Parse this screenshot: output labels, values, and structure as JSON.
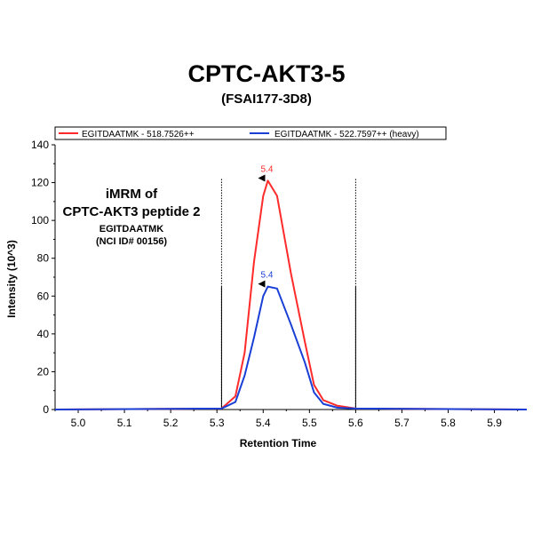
{
  "title": "CPTC-AKT3-5",
  "subtitle": "(FSAI177-3D8)",
  "annotation": {
    "line1": "iMRM of",
    "line2": "CPTC-AKT3 peptide 2",
    "line3": "EGITDAATMK",
    "line4": "(NCI ID# 00156)"
  },
  "chart_data": {
    "type": "line",
    "xlabel": "Retention Time",
    "ylabel": "Intensity (10^3)",
    "xlim": [
      4.95,
      5.97
    ],
    "ylim": [
      0,
      140
    ],
    "x_ticks": [
      "5.0",
      "5.1",
      "5.2",
      "5.3",
      "5.4",
      "5.5",
      "5.6",
      "5.7",
      "5.8",
      "5.9"
    ],
    "y_ticks": [
      "0",
      "20",
      "40",
      "60",
      "80",
      "100",
      "120",
      "140"
    ],
    "integration_bounds": [
      5.31,
      5.6
    ],
    "series": [
      {
        "name": "EGITDAATMK - 518.7526++",
        "color": "#ff2a2a",
        "x": [
          4.95,
          5.31,
          5.34,
          5.36,
          5.38,
          5.4,
          5.41,
          5.43,
          5.46,
          5.49,
          5.51,
          5.53,
          5.56,
          5.6,
          5.97
        ],
        "y": [
          0,
          0.5,
          7,
          30,
          78,
          113,
          121,
          113,
          72,
          36,
          13,
          5,
          2,
          0.5,
          0
        ],
        "peak_label": "5.4",
        "peak_x": 5.41,
        "peak_y": 121
      },
      {
        "name": "EGITDAATMK - 522.7597++ (heavy)",
        "color": "#1a3fd6",
        "x": [
          4.95,
          5.31,
          5.34,
          5.36,
          5.38,
          5.4,
          5.41,
          5.43,
          5.46,
          5.49,
          5.51,
          5.53,
          5.56,
          5.6,
          5.97
        ],
        "y": [
          0,
          0.5,
          4,
          18,
          38,
          60,
          65,
          64,
          45,
          25,
          9,
          3,
          1,
          0.5,
          0
        ],
        "peak_label": "5.4",
        "peak_x": 5.41,
        "peak_y": 65
      }
    ],
    "grid": false,
    "legend_position": "top"
  }
}
